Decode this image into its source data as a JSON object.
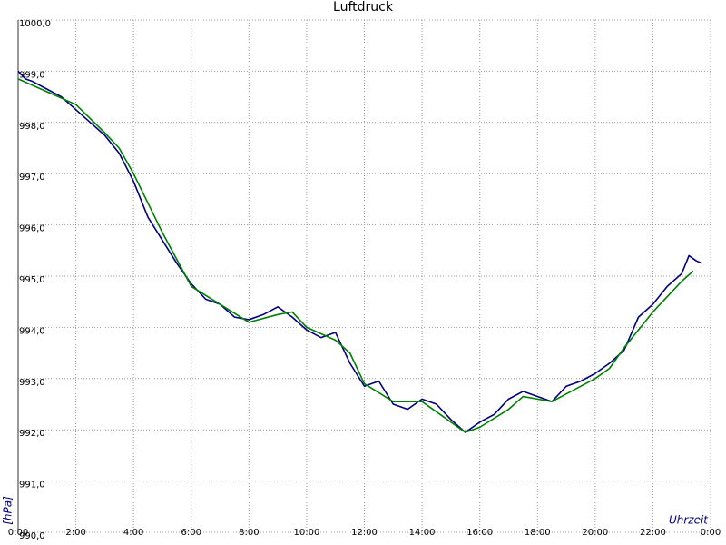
{
  "chart_data": {
    "type": "line",
    "title": "Luftdruck",
    "y_label": "[hPa]",
    "x_label": "Uhrzeit",
    "xlim": [
      0,
      24
    ],
    "ylim": [
      990,
      1000
    ],
    "grid": true,
    "xticks": [
      {
        "value": 0,
        "label": "0:00"
      },
      {
        "value": 2,
        "label": "2:00"
      },
      {
        "value": 4,
        "label": "4:00"
      },
      {
        "value": 6,
        "label": "6:00"
      },
      {
        "value": 8,
        "label": "8:00"
      },
      {
        "value": 10,
        "label": "10:00"
      },
      {
        "value": 12,
        "label": "12:00"
      },
      {
        "value": 14,
        "label": "14:00"
      },
      {
        "value": 16,
        "label": "16:00"
      },
      {
        "value": 18,
        "label": "18:00"
      },
      {
        "value": 20,
        "label": "20:00"
      },
      {
        "value": 22,
        "label": "22:00"
      },
      {
        "value": 24,
        "label": "0:00"
      }
    ],
    "yticks": [
      {
        "value": 990,
        "label": "990,0"
      },
      {
        "value": 991,
        "label": "991,0"
      },
      {
        "value": 992,
        "label": "992,0"
      },
      {
        "value": 993,
        "label": "993,0"
      },
      {
        "value": 994,
        "label": "994,0"
      },
      {
        "value": 995,
        "label": "995,0"
      },
      {
        "value": 996,
        "label": "996,0"
      },
      {
        "value": 997,
        "label": "997,0"
      },
      {
        "value": 998,
        "label": "998,0"
      },
      {
        "value": 999,
        "label": "999,0"
      },
      {
        "value": 1000,
        "label": "1000,0"
      }
    ],
    "series": [
      {
        "color": "#000080",
        "x": [
          0,
          0.25,
          0.5,
          1,
          1.5,
          2,
          2.5,
          3,
          3.5,
          4,
          4.5,
          5,
          5.5,
          6,
          6.5,
          7,
          7.5,
          8,
          8.5,
          9,
          9.5,
          10,
          10.5,
          11,
          11.5,
          12,
          12.5,
          13,
          13.5,
          14,
          14.5,
          15,
          15.5,
          16,
          16.5,
          17,
          17.5,
          18,
          18.5,
          19,
          19.5,
          20,
          20.5,
          21,
          21.5,
          22,
          22.5,
          23,
          23.25,
          23.5,
          23.7
        ],
        "values": [
          999.0,
          998.85,
          998.8,
          998.65,
          998.5,
          998.25,
          998.0,
          997.75,
          997.4,
          996.85,
          996.15,
          995.7,
          995.25,
          994.85,
          994.55,
          994.45,
          994.2,
          994.15,
          994.25,
          994.4,
          994.2,
          993.95,
          993.8,
          993.9,
          993.3,
          992.85,
          992.95,
          992.5,
          992.4,
          992.6,
          992.5,
          992.2,
          991.95,
          992.15,
          992.3,
          992.6,
          992.75,
          992.65,
          992.55,
          992.85,
          992.95,
          993.1,
          993.3,
          993.55,
          994.2,
          994.45,
          994.8,
          995.05,
          995.4,
          995.3,
          995.25
        ]
      },
      {
        "color": "#008000",
        "x": [
          0,
          1,
          2,
          3,
          3.5,
          4,
          5,
          6,
          7,
          8,
          9,
          9.5,
          10,
          11,
          11.5,
          12,
          13,
          14,
          14.5,
          15,
          15.5,
          16,
          17,
          17.5,
          18,
          18.5,
          19,
          20,
          20.5,
          21,
          22,
          23,
          23.4
        ],
        "values": [
          998.85,
          998.6,
          998.35,
          997.8,
          997.5,
          997.0,
          995.85,
          994.8,
          994.45,
          994.1,
          994.25,
          994.3,
          994.0,
          993.75,
          993.5,
          992.9,
          992.55,
          992.55,
          992.35,
          992.15,
          991.95,
          992.05,
          992.4,
          992.65,
          992.6,
          992.55,
          992.7,
          993.0,
          993.2,
          993.6,
          994.3,
          994.9,
          995.1
        ]
      }
    ]
  }
}
